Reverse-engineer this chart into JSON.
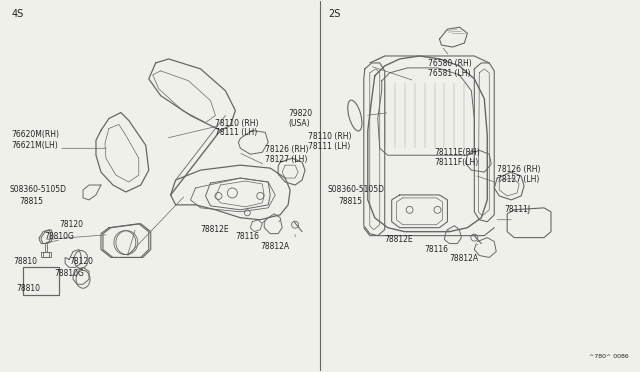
{
  "bg_color": "#f0f0eb",
  "line_color": "#666666",
  "text_color": "#222222",
  "left_label": "4S",
  "right_label": "2S",
  "footer": "^780^ 0086"
}
